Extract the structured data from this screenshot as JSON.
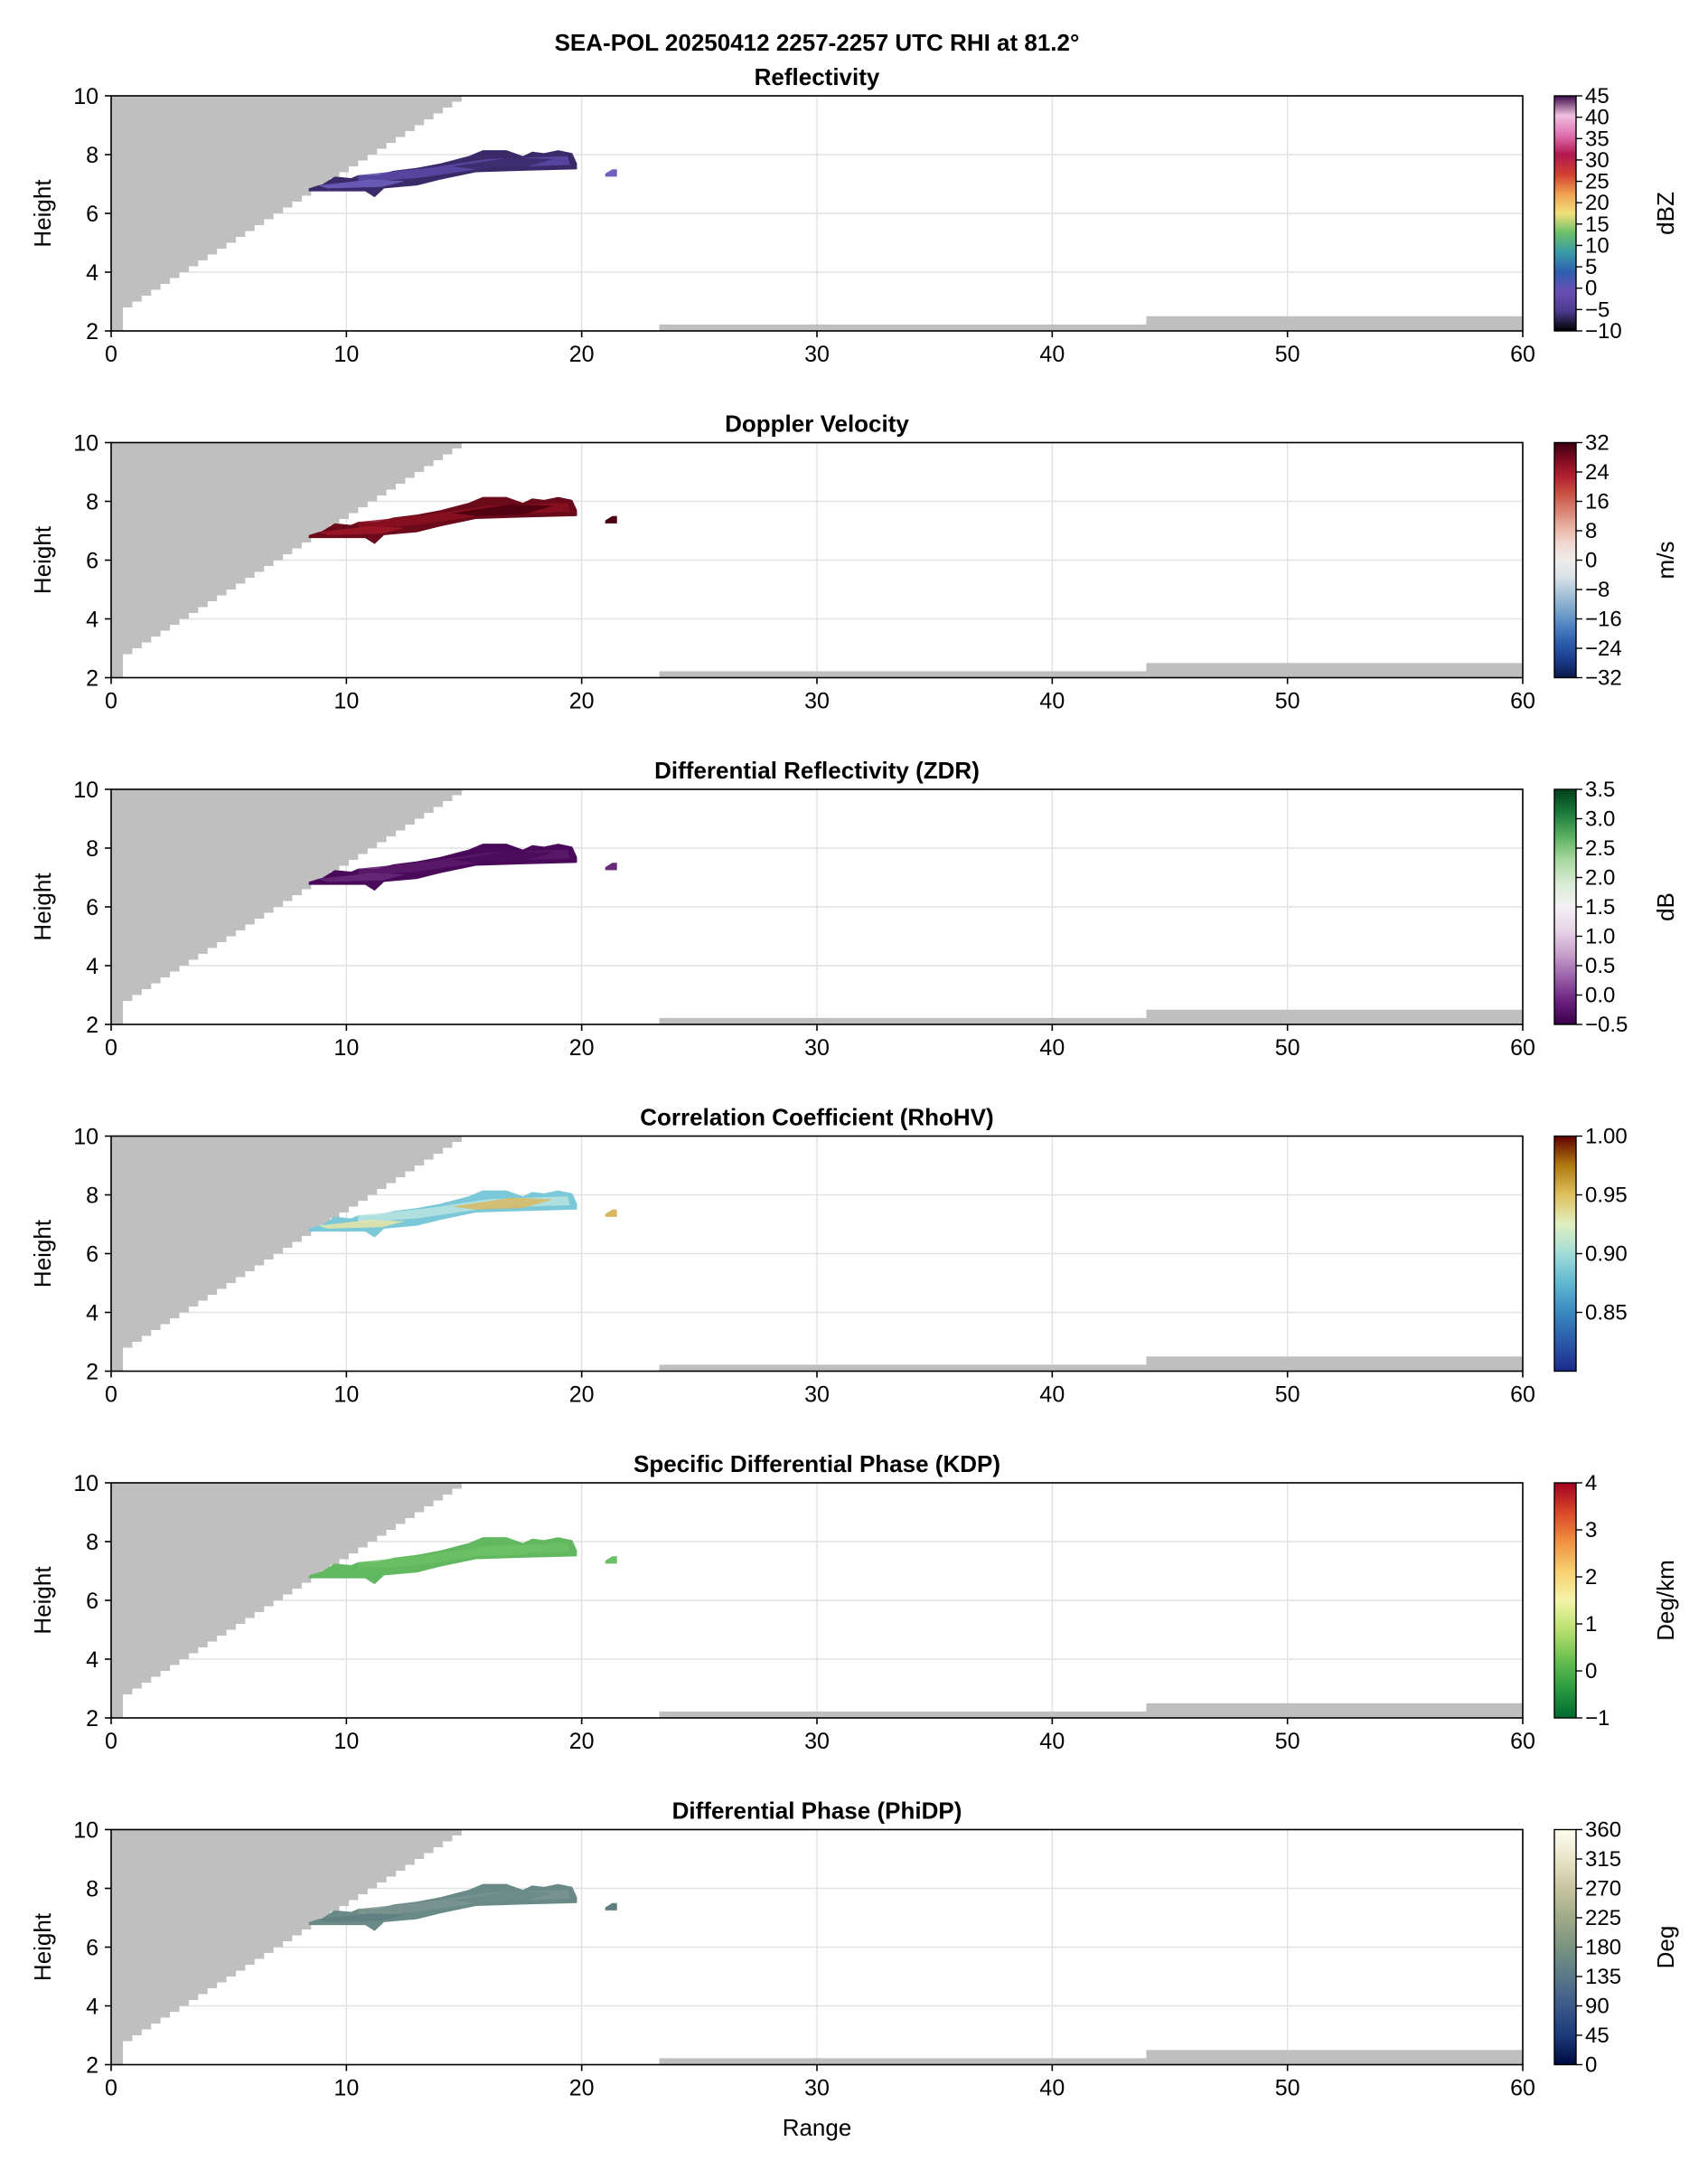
{
  "figure": {
    "suptitle": "SEA-POL 20250412 2257-2257 UTC RHI at 81.2°",
    "xlabel": "Range",
    "ylabel": "Height"
  },
  "chart_data": [
    {
      "type": "heatmap",
      "title": "Reflectivity",
      "xlabel": "",
      "ylabel": "Height",
      "xlim": [
        0,
        60
      ],
      "ylim": [
        2,
        10
      ],
      "xticks": [
        "0",
        "10",
        "20",
        "30",
        "40",
        "50",
        "60"
      ],
      "yticks": [
        "2",
        "4",
        "6",
        "8",
        "10"
      ],
      "grid": true,
      "colorbar": {
        "label": "dBZ",
        "range": [
          -10,
          45
        ],
        "ticks": [
          {
            "value": -10,
            "label": "−10"
          },
          {
            "value": -5,
            "label": "−5"
          },
          {
            "value": 0,
            "label": "0"
          },
          {
            "value": 5,
            "label": "5"
          },
          {
            "value": 10,
            "label": "10"
          },
          {
            "value": 15,
            "label": "15"
          },
          {
            "value": 20,
            "label": "20"
          },
          {
            "value": 25,
            "label": "25"
          },
          {
            "value": 30,
            "label": "30"
          },
          {
            "value": 35,
            "label": "35"
          },
          {
            "value": 40,
            "label": "40"
          },
          {
            "value": 45,
            "label": "45"
          }
        ],
        "colors": [
          "#000000",
          "#4a3a8c",
          "#6a4fb5",
          "#2f5fb0",
          "#3a9aa8",
          "#6ac06a",
          "#f2e07a",
          "#f0a050",
          "#d04030",
          "#b01850",
          "#e070b0",
          "#f0c0e0",
          "#3a0a4a"
        ]
      },
      "echo_colors": [
        "#3a2a6a",
        "#5a4aa8",
        "#7060c0"
      ],
      "echo_value_range": [
        -8,
        2
      ]
    },
    {
      "type": "heatmap",
      "title": "Doppler Velocity",
      "xlabel": "",
      "ylabel": "Height",
      "xlim": [
        0,
        60
      ],
      "ylim": [
        2,
        10
      ],
      "xticks": [
        "0",
        "10",
        "20",
        "30",
        "40",
        "50",
        "60"
      ],
      "yticks": [
        "2",
        "4",
        "6",
        "8",
        "10"
      ],
      "grid": true,
      "colorbar": {
        "label": "m/s",
        "range": [
          -32,
          32
        ],
        "ticks": [
          {
            "value": -32,
            "label": "−32"
          },
          {
            "value": -24,
            "label": "−24"
          },
          {
            "value": -16,
            "label": "−16"
          },
          {
            "value": -8,
            "label": "−8"
          },
          {
            "value": 0,
            "label": "0"
          },
          {
            "value": 8,
            "label": "8"
          },
          {
            "value": 16,
            "label": "16"
          },
          {
            "value": 24,
            "label": "24"
          },
          {
            "value": 32,
            "label": "32"
          }
        ],
        "colors": [
          "#0a1a4a",
          "#1a3a8a",
          "#2a5aaa",
          "#4a80c0",
          "#7aa4cc",
          "#a8c4d8",
          "#d8e2e8",
          "#f0ecea",
          "#f0d8d0",
          "#e8b0a0",
          "#d88070",
          "#c85040",
          "#b02030",
          "#800a20",
          "#3a0010"
        ]
      },
      "echo_colors": [
        "#6a0a1a",
        "#8a1020",
        "#a01828",
        "#4a0010"
      ],
      "echo_value_range": [
        22,
        32
      ]
    },
    {
      "type": "heatmap",
      "title": "Differential Reflectivity (ZDR)",
      "xlabel": "",
      "ylabel": "Height",
      "xlim": [
        0,
        60
      ],
      "ylim": [
        2,
        10
      ],
      "xticks": [
        "0",
        "10",
        "20",
        "30",
        "40",
        "50",
        "60"
      ],
      "yticks": [
        "2",
        "4",
        "6",
        "8",
        "10"
      ],
      "grid": true,
      "colorbar": {
        "label": "dB",
        "range": [
          -0.5,
          3.5
        ],
        "ticks": [
          {
            "value": -0.5,
            "label": "−0.5"
          },
          {
            "value": 0.0,
            "label": "0.0"
          },
          {
            "value": 0.5,
            "label": "0.5"
          },
          {
            "value": 1.0,
            "label": "1.0"
          },
          {
            "value": 1.5,
            "label": "1.5"
          },
          {
            "value": 2.0,
            "label": "2.0"
          },
          {
            "value": 2.5,
            "label": "2.5"
          },
          {
            "value": 3.0,
            "label": "3.0"
          },
          {
            "value": 3.5,
            "label": "3.5"
          }
        ],
        "colors": [
          "#3a0048",
          "#6a2080",
          "#9a60a8",
          "#c8a0cc",
          "#e8d4e8",
          "#f4f0f4",
          "#d8ecd4",
          "#a8d8a0",
          "#5ab060",
          "#1a7a3a",
          "#00401a"
        ]
      },
      "echo_colors": [
        "#4a0a5a",
        "#5a1a6a",
        "#6a2a7a"
      ],
      "echo_value_range": [
        -0.4,
        0.2
      ]
    },
    {
      "type": "heatmap",
      "title": "Correlation Coefficient (RhoHV)",
      "xlabel": "",
      "ylabel": "Height",
      "xlim": [
        0,
        60
      ],
      "ylim": [
        2,
        10
      ],
      "xticks": [
        "0",
        "10",
        "20",
        "30",
        "40",
        "50",
        "60"
      ],
      "yticks": [
        "2",
        "4",
        "6",
        "8",
        "10"
      ],
      "grid": true,
      "colorbar": {
        "label": "",
        "range": [
          0.8,
          1.0
        ],
        "ticks": [
          {
            "value": 0.85,
            "label": "0.85"
          },
          {
            "value": 0.9,
            "label": "0.90"
          },
          {
            "value": 0.95,
            "label": "0.95"
          },
          {
            "value": 1.0,
            "label": "1.00"
          }
        ],
        "colors": [
          "#1a2a8a",
          "#2a5aaa",
          "#3a88c0",
          "#60b8d0",
          "#a0dcd8",
          "#e0f0c0",
          "#e0c060",
          "#b07a10",
          "#600000"
        ]
      },
      "echo_colors": [
        "#7ac8d8",
        "#b8e4e0",
        "#e8e4a8",
        "#d8b860"
      ],
      "echo_value_range": [
        0.9,
        0.98
      ]
    },
    {
      "type": "heatmap",
      "title": "Specific Differential Phase (KDP)",
      "xlabel": "",
      "ylabel": "Height",
      "xlim": [
        0,
        60
      ],
      "ylim": [
        2,
        10
      ],
      "xticks": [
        "0",
        "10",
        "20",
        "30",
        "40",
        "50",
        "60"
      ],
      "yticks": [
        "2",
        "4",
        "6",
        "8",
        "10"
      ],
      "grid": true,
      "colorbar": {
        "label": "Deg/km",
        "range": [
          -1,
          4
        ],
        "ticks": [
          {
            "value": -1,
            "label": "−1"
          },
          {
            "value": 0,
            "label": "0"
          },
          {
            "value": 1,
            "label": "1"
          },
          {
            "value": 2,
            "label": "2"
          },
          {
            "value": 3,
            "label": "3"
          },
          {
            "value": 4,
            "label": "4"
          }
        ],
        "colors": [
          "#006a30",
          "#2a9a40",
          "#6ac050",
          "#b8e070",
          "#f4f4a8",
          "#f8d070",
          "#f09040",
          "#d84828",
          "#a00020"
        ]
      },
      "echo_colors": [
        "#62b860",
        "#6cc066"
      ],
      "echo_value_range": [
        -0.2,
        0.3
      ]
    },
    {
      "type": "heatmap",
      "title": "Differential Phase (PhiDP)",
      "xlabel": "Range",
      "ylabel": "Height",
      "xlim": [
        0,
        60
      ],
      "ylim": [
        2,
        10
      ],
      "xticks": [
        "0",
        "10",
        "20",
        "30",
        "40",
        "50",
        "60"
      ],
      "yticks": [
        "2",
        "4",
        "6",
        "8",
        "10"
      ],
      "grid": true,
      "colorbar": {
        "label": "Deg",
        "range": [
          0,
          360
        ],
        "ticks": [
          {
            "value": 0,
            "label": "0"
          },
          {
            "value": 45,
            "label": "45"
          },
          {
            "value": 90,
            "label": "90"
          },
          {
            "value": 135,
            "label": "135"
          },
          {
            "value": 180,
            "label": "180"
          },
          {
            "value": 225,
            "label": "225"
          },
          {
            "value": 270,
            "label": "270"
          },
          {
            "value": 315,
            "label": "315"
          },
          {
            "value": 360,
            "label": "360"
          }
        ],
        "colors": [
          "#000a40",
          "#1a3a7a",
          "#3a5a8a",
          "#5a7888",
          "#7a9480",
          "#a0aa88",
          "#c8c4a0",
          "#e8e4c8",
          "#fefef0"
        ]
      },
      "echo_colors": [
        "#6a8a88",
        "#7a9490",
        "#5e7e80"
      ],
      "echo_value_range": [
        180,
        210
      ]
    }
  ],
  "mask": {
    "color": "#bfbfbf",
    "beam_blockage_staircase": [
      [
        0.0,
        2.0
      ],
      [
        0.5,
        2.8
      ],
      [
        0.9,
        3.0
      ],
      [
        1.3,
        3.2
      ],
      [
        1.7,
        3.4
      ],
      [
        2.1,
        3.6
      ],
      [
        2.5,
        3.8
      ],
      [
        2.9,
        4.0
      ],
      [
        3.3,
        4.2
      ],
      [
        3.7,
        4.4
      ],
      [
        4.1,
        4.6
      ],
      [
        4.5,
        4.8
      ],
      [
        4.9,
        5.0
      ],
      [
        5.3,
        5.2
      ],
      [
        5.7,
        5.4
      ],
      [
        6.1,
        5.6
      ],
      [
        6.5,
        5.8
      ],
      [
        6.9,
        6.0
      ],
      [
        7.3,
        6.2
      ],
      [
        7.7,
        6.4
      ],
      [
        8.1,
        6.6
      ],
      [
        8.5,
        6.8
      ],
      [
        8.9,
        7.0
      ],
      [
        9.3,
        7.2
      ],
      [
        9.7,
        7.4
      ],
      [
        10.1,
        7.6
      ],
      [
        10.5,
        7.8
      ],
      [
        10.9,
        8.0
      ],
      [
        11.3,
        8.2
      ],
      [
        11.7,
        8.4
      ],
      [
        12.1,
        8.6
      ],
      [
        12.5,
        8.8
      ],
      [
        12.9,
        9.0
      ],
      [
        13.3,
        9.2
      ],
      [
        13.7,
        9.4
      ],
      [
        14.1,
        9.6
      ],
      [
        14.5,
        9.8
      ],
      [
        14.9,
        10.0
      ]
    ],
    "ground_segments": [
      {
        "x0": 23.3,
        "x1": 44.0,
        "top": 2.22
      },
      {
        "x0": 44.0,
        "x1": 60.0,
        "top": 2.5
      }
    ]
  },
  "echo": {
    "main_outline": [
      [
        8.4,
        6.85
      ],
      [
        9.0,
        7.0
      ],
      [
        9.5,
        7.25
      ],
      [
        10.2,
        7.2
      ],
      [
        10.5,
        7.3
      ],
      [
        11.3,
        7.3
      ],
      [
        12.0,
        7.45
      ],
      [
        13.0,
        7.55
      ],
      [
        14.0,
        7.7
      ],
      [
        15.2,
        7.95
      ],
      [
        15.8,
        8.15
      ],
      [
        16.8,
        8.15
      ],
      [
        17.5,
        7.95
      ],
      [
        17.9,
        8.1
      ],
      [
        18.4,
        8.05
      ],
      [
        19.0,
        8.15
      ],
      [
        19.6,
        8.05
      ],
      [
        19.8,
        7.7
      ],
      [
        19.8,
        7.5
      ],
      [
        17.5,
        7.45
      ],
      [
        15.5,
        7.4
      ],
      [
        14.0,
        7.15
      ],
      [
        13.0,
        6.95
      ],
      [
        11.6,
        6.85
      ],
      [
        11.2,
        6.55
      ],
      [
        10.8,
        6.75
      ],
      [
        9.5,
        6.75
      ],
      [
        8.4,
        6.75
      ]
    ],
    "small_outline": [
      [
        21.0,
        7.25
      ],
      [
        21.5,
        7.25
      ],
      [
        21.5,
        7.5
      ],
      [
        21.3,
        7.5
      ],
      [
        21.0,
        7.35
      ]
    ]
  }
}
